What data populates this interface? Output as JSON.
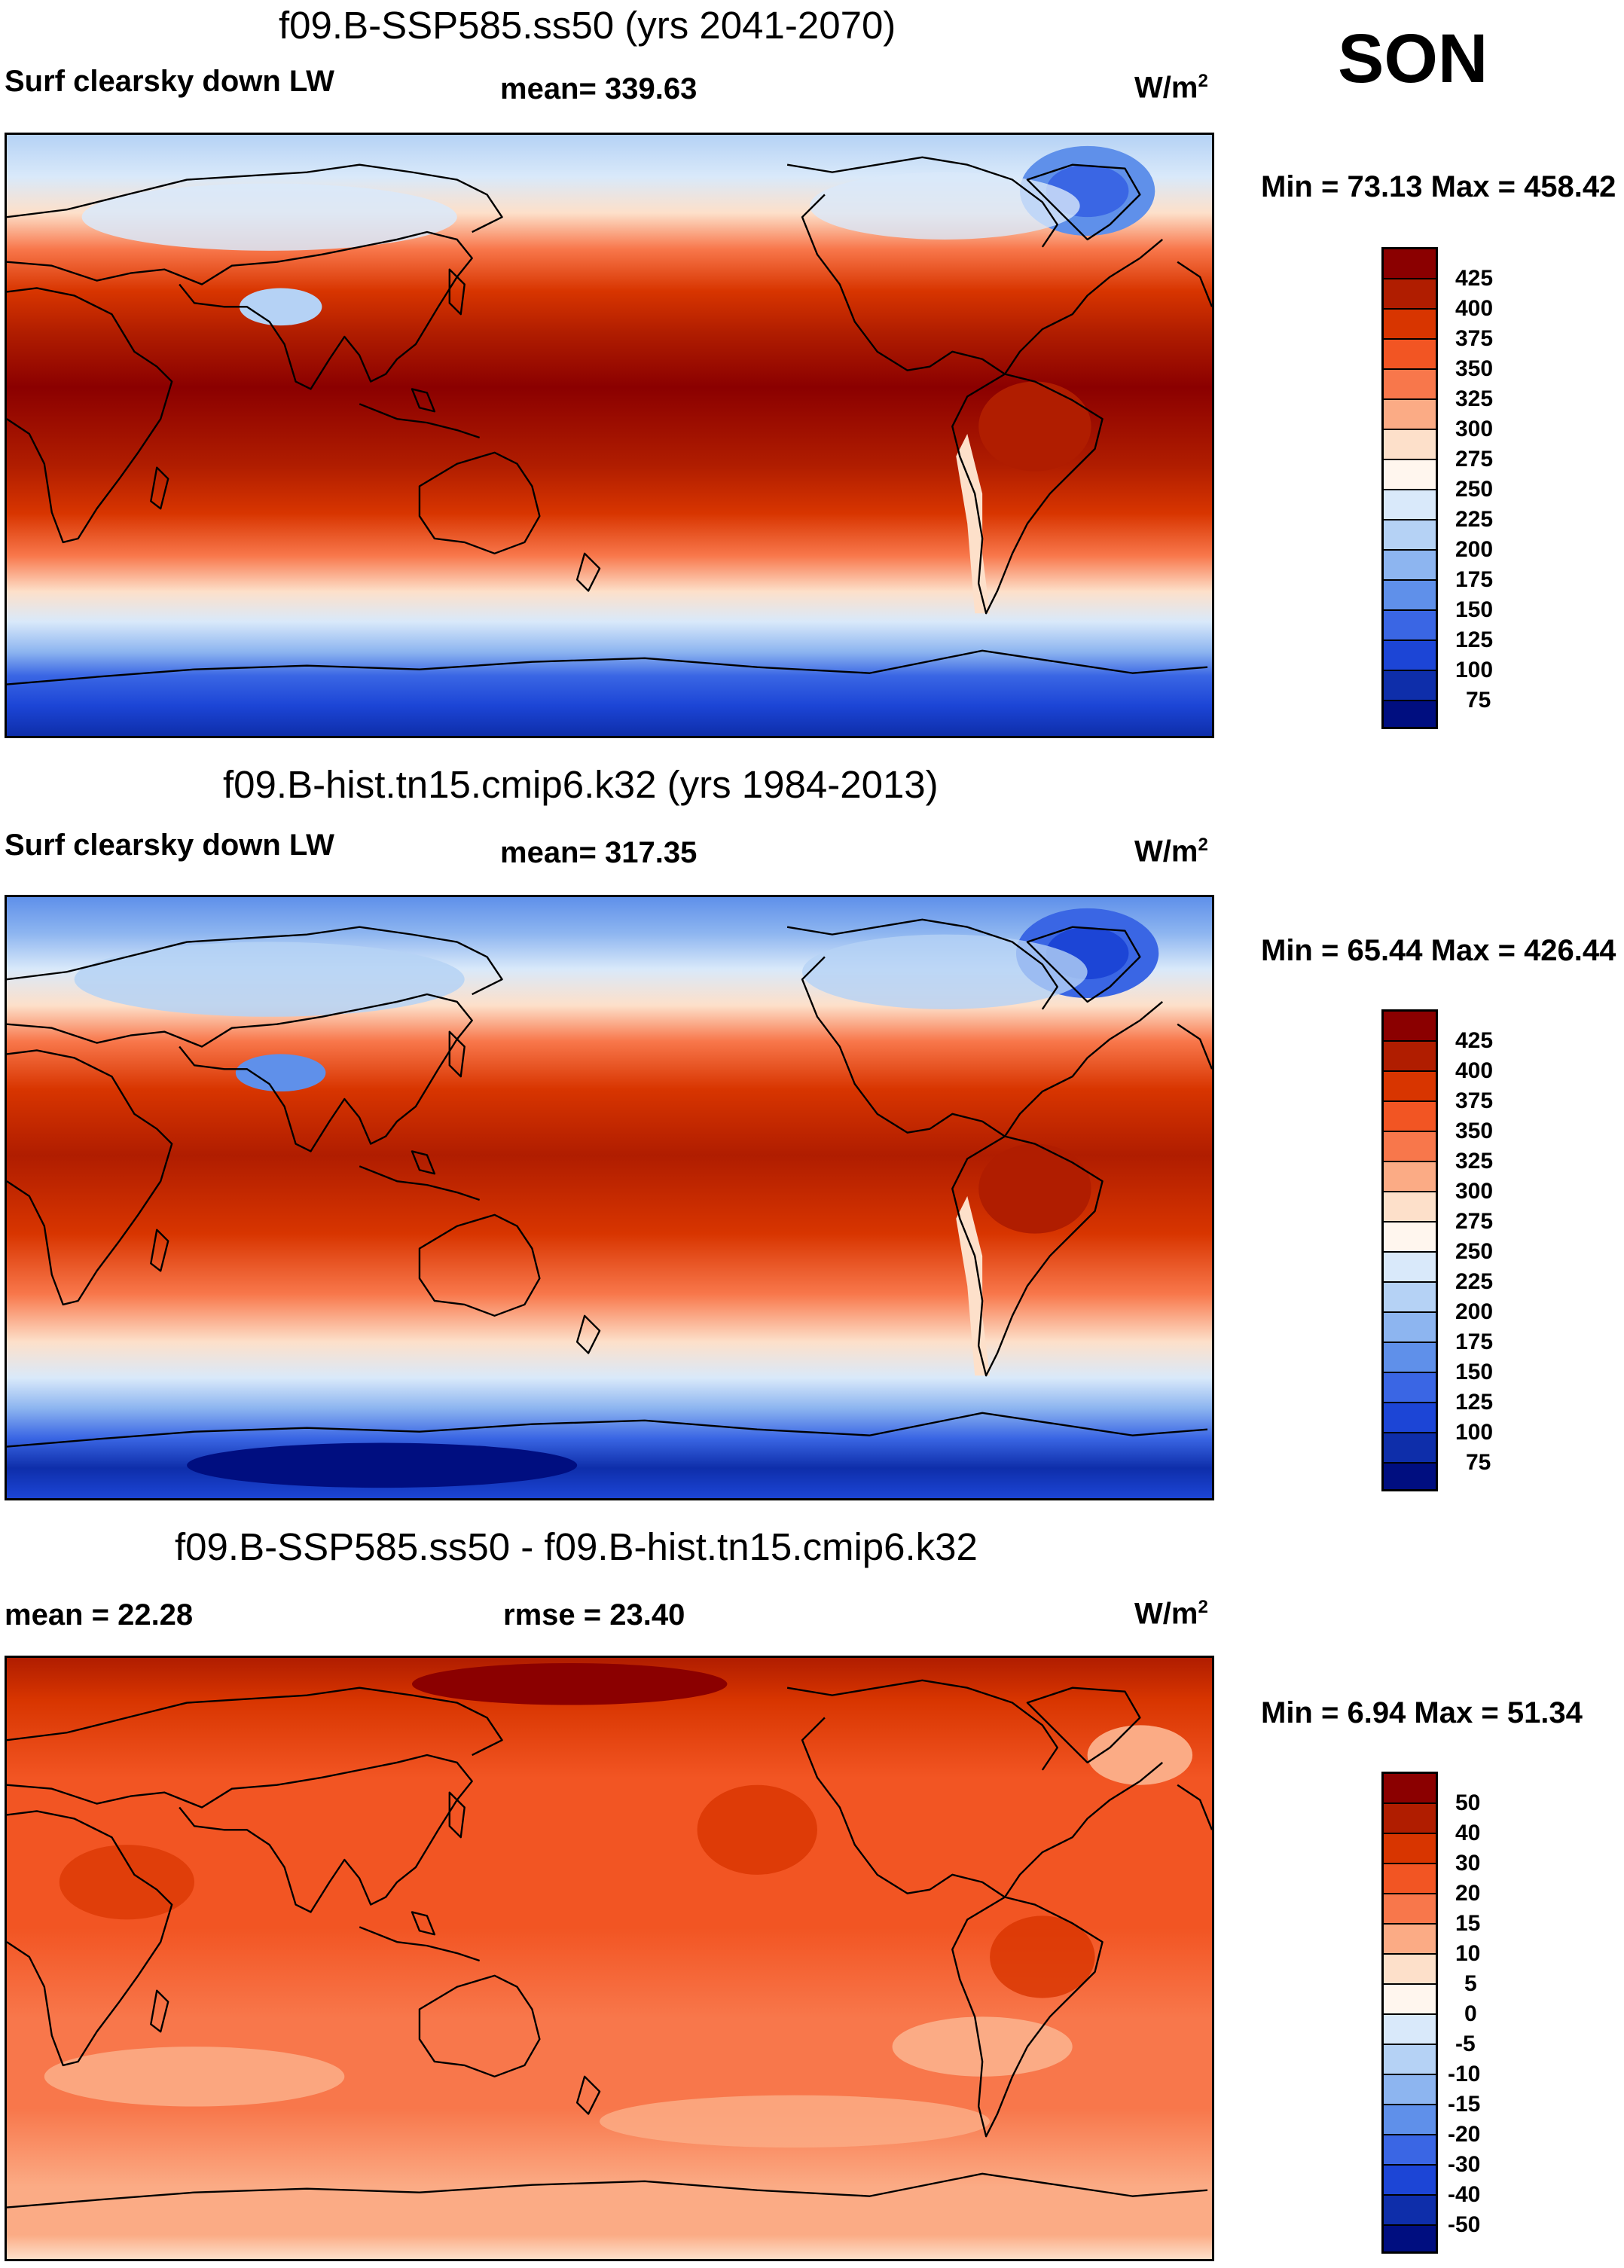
{
  "season": "SON",
  "panels": [
    {
      "id": "top",
      "title": "f09.B-SSP585.ss50 (yrs 2041-2070)",
      "left_label": "Surf clearsky down LW",
      "center_label": "mean= 339.63",
      "units": "W/m",
      "units_sup": "2",
      "minmax": "Min =  73.13 Max = 458.42",
      "colorbar_ticks": [
        "425",
        "400",
        "375",
        "350",
        "325",
        "300",
        "275",
        "250",
        "225",
        "200",
        "175",
        "150",
        "125",
        "100",
        "75"
      ],
      "colorbar_colors": [
        "#8b0000",
        "#b01d00",
        "#d83500",
        "#f25523",
        "#f8774b",
        "#fbab85",
        "#fde0ca",
        "#fff6ee",
        "#d9e9fa",
        "#b5d2f5",
        "#8db5f0",
        "#5f90ea",
        "#3a66e4",
        "#1c45d6",
        "#0e2eaa",
        "#000e80"
      ]
    },
    {
      "id": "middle",
      "title": "f09.B-hist.tn15.cmip6.k32 (yrs 1984-2013)",
      "left_label": "Surf clearsky down LW",
      "center_label": "mean= 317.35",
      "units": "W/m",
      "units_sup": "2",
      "minmax": "Min =  65.44 Max = 426.44",
      "colorbar_ticks": [
        "425",
        "400",
        "375",
        "350",
        "325",
        "300",
        "275",
        "250",
        "225",
        "200",
        "175",
        "150",
        "125",
        "100",
        "75"
      ],
      "colorbar_colors": [
        "#8b0000",
        "#b01d00",
        "#d83500",
        "#f25523",
        "#f8774b",
        "#fbab85",
        "#fde0ca",
        "#fff6ee",
        "#d9e9fa",
        "#b5d2f5",
        "#8db5f0",
        "#5f90ea",
        "#3a66e4",
        "#1c45d6",
        "#0e2eaa",
        "#000e80"
      ]
    },
    {
      "id": "bottom",
      "title": "f09.B-SSP585.ss50 - f09.B-hist.tn15.cmip6.k32",
      "left_label": "mean =  22.28",
      "center_label": "rmse =  23.40",
      "units": "W/m",
      "units_sup": "2",
      "minmax": "Min =   6.94 Max =  51.34",
      "colorbar_ticks": [
        "50",
        "40",
        "30",
        "20",
        "15",
        "10",
        "5",
        "0",
        "-5",
        "-10",
        "-15",
        "-20",
        "-30",
        "-40",
        "-50"
      ],
      "colorbar_colors": [
        "#8b0000",
        "#b01d00",
        "#d83500",
        "#f25523",
        "#f8774b",
        "#fbab85",
        "#fde0ca",
        "#fff6ee",
        "#d9e9fa",
        "#b5d2f5",
        "#8db5f0",
        "#5f90ea",
        "#3a66e4",
        "#1c45d6",
        "#0e2eaa",
        "#000e80"
      ]
    }
  ]
}
